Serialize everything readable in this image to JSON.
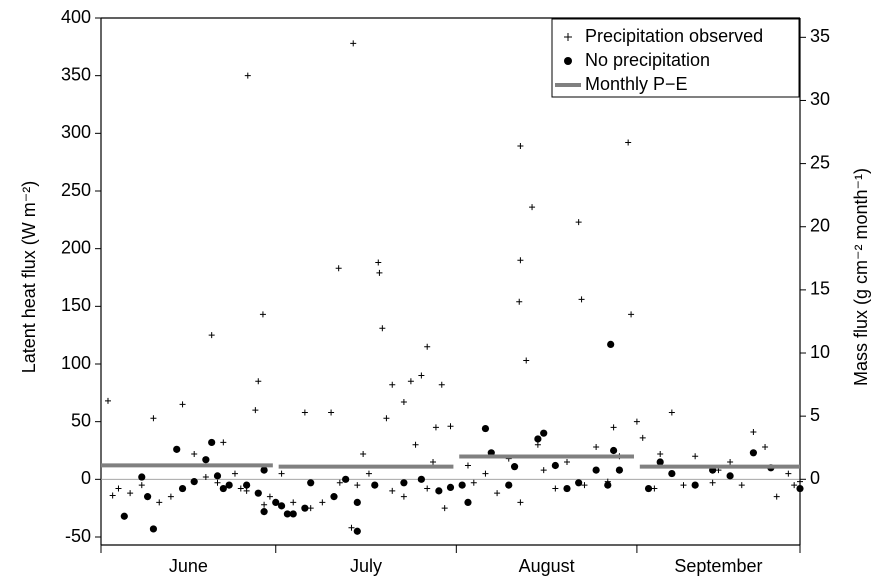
{
  "chart_data": {
    "type": "scatter",
    "ylabel": "Latent heat flux (W m⁻²)",
    "y2label": "Mass flux (g cm⁻² month⁻¹)",
    "categories": [
      "June",
      "July",
      "August",
      "September"
    ],
    "xlim": [
      0,
      120
    ],
    "xticks": [
      0,
      30,
      61,
      92,
      120
    ],
    "ylim": [
      -50,
      400
    ],
    "yticks": [
      -50,
      0,
      50,
      100,
      150,
      200,
      250,
      300,
      350,
      400
    ],
    "y2lim": [
      -4.57,
      36.53
    ],
    "y2ticks": [
      0,
      5,
      10,
      15,
      20,
      25,
      30,
      35
    ],
    "legend": "upper right",
    "series": [
      {
        "name": "Precipitation observed",
        "marker": "plus",
        "color": "#000000",
        "x": [
          1.2,
          9,
          14,
          19,
          25,
          25.2,
          27,
          26.5,
          27.8,
          16,
          18,
          22,
          24,
          5,
          3,
          2,
          7,
          12,
          20,
          28,
          29,
          10,
          23,
          21,
          35,
          39.5,
          43,
          43.3,
          40.8,
          47.6,
          47.8,
          48.3,
          49,
          50,
          52,
          53.2,
          55,
          56,
          54,
          58.5,
          57.5,
          60,
          38,
          44,
          46,
          50,
          56,
          59,
          33,
          36,
          41,
          45,
          52,
          57,
          31,
          72,
          72,
          71.8,
          73,
          74,
          82,
          82.5,
          90.5,
          91,
          88,
          64,
          66,
          68,
          70,
          72,
          76,
          78,
          80,
          83,
          85,
          87,
          89,
          92,
          63,
          75,
          93,
          96,
          98,
          102,
          105,
          108,
          110,
          112,
          114,
          116,
          118,
          119,
          120,
          100,
          95,
          106
        ],
        "values": [
          68,
          53,
          65,
          125,
          -10,
          350,
          85,
          60,
          143,
          22,
          2,
          -5,
          -8,
          -12,
          -8,
          -14,
          -5,
          -15,
          -3,
          -22,
          -15,
          -20,
          5,
          32,
          58,
          58,
          -42,
          378,
          183,
          188,
          179,
          131,
          53,
          82,
          67,
          85,
          90,
          115,
          30,
          82,
          45,
          46,
          -20,
          -5,
          5,
          -10,
          -8,
          -25,
          -20,
          -25,
          -3,
          22,
          -15,
          15,
          5,
          289,
          190,
          154,
          103,
          236,
          223,
          156,
          292,
          143,
          45,
          -3,
          5,
          -12,
          18,
          -20,
          8,
          -8,
          15,
          -5,
          28,
          -2,
          20,
          50,
          12,
          30,
          36,
          22,
          58,
          20,
          -3,
          15,
          -5,
          41,
          28,
          -15,
          5,
          -5,
          -2,
          -5,
          -8,
          8
        ]
      },
      {
        "name": "No precipitation",
        "marker": "dot",
        "color": "#000000",
        "x": [
          4,
          7,
          8,
          9,
          13,
          14,
          16,
          18,
          19,
          20,
          21,
          22,
          25,
          27,
          28,
          28,
          30,
          31,
          32,
          33,
          35,
          36,
          40,
          42,
          44,
          44,
          47,
          52,
          55,
          58,
          60,
          62,
          63,
          66,
          67,
          70,
          71,
          75,
          76,
          78,
          80,
          82,
          85,
          87,
          88,
          89,
          87.5,
          94,
          96,
          98,
          102,
          105,
          108,
          112,
          115,
          120
        ],
        "values": [
          -32,
          2,
          -15,
          -43,
          26,
          -8,
          -2,
          17,
          32,
          3,
          -8,
          -5,
          -5,
          -12,
          8,
          -28,
          -20,
          -23,
          -30,
          -30,
          -25,
          -3,
          -15,
          0,
          -45,
          -20,
          -5,
          -3,
          0,
          -10,
          -7,
          -5,
          -20,
          44,
          23,
          -5,
          11,
          35,
          40,
          12,
          -8,
          -3,
          8,
          -5,
          25,
          8,
          117,
          -8,
          15,
          5,
          -5,
          8,
          3,
          23,
          10,
          -8
        ]
      },
      {
        "name": "Monthly P−E",
        "marker": "segment",
        "color": "#808080",
        "axis": "y2",
        "x": [
          0,
          29.5,
          30.5,
          60.5,
          61.5,
          91.5,
          92.5,
          120
        ],
        "values": [
          1.1,
          1.1,
          1.0,
          1.0,
          1.8,
          1.8,
          1.0,
          1.0
        ]
      }
    ]
  }
}
